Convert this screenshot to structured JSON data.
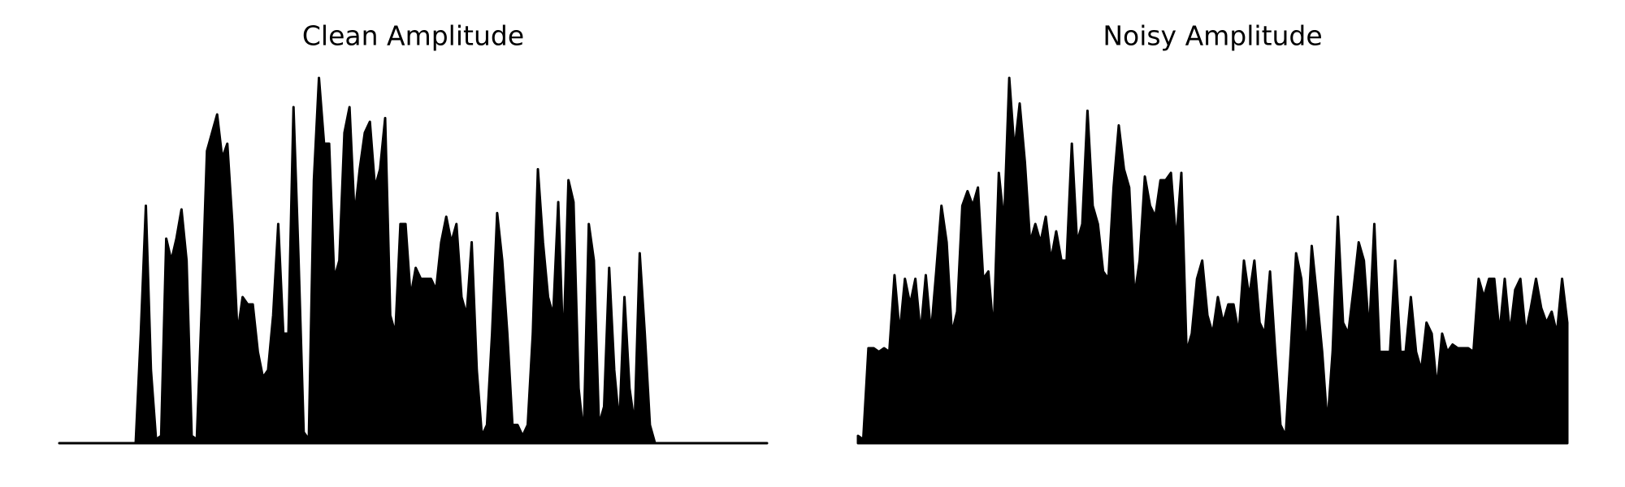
{
  "chart_data": [
    {
      "type": "area",
      "title": "Clean Amplitude",
      "color": "#000000",
      "ylim": [
        0,
        1
      ],
      "values": [
        0,
        0,
        0,
        0,
        0,
        0,
        0,
        0,
        0,
        0,
        0,
        0,
        0,
        0,
        0,
        0,
        0.3,
        0.65,
        0.2,
        0.01,
        0.02,
        0.56,
        0.5,
        0.56,
        0.64,
        0.5,
        0.02,
        0.01,
        0.38,
        0.8,
        0.85,
        0.9,
        0.78,
        0.82,
        0.6,
        0.3,
        0.4,
        0.38,
        0.38,
        0.25,
        0.18,
        0.2,
        0.35,
        0.6,
        0.3,
        0.3,
        0.92,
        0.5,
        0.03,
        0.01,
        0.72,
        1.0,
        0.82,
        0.82,
        0.45,
        0.5,
        0.85,
        0.92,
        0.62,
        0.75,
        0.85,
        0.88,
        0.7,
        0.75,
        0.89,
        0.35,
        0.3,
        0.6,
        0.6,
        0.4,
        0.48,
        0.45,
        0.45,
        0.45,
        0.42,
        0.55,
        0.62,
        0.55,
        0.6,
        0.4,
        0.35,
        0.55,
        0.2,
        0.02,
        0.05,
        0.3,
        0.63,
        0.5,
        0.3,
        0.05,
        0.05,
        0.02,
        0.05,
        0.3,
        0.75,
        0.55,
        0.4,
        0.35,
        0.66,
        0.25,
        0.72,
        0.66,
        0.15,
        0.02,
        0.6,
        0.5,
        0.05,
        0.1,
        0.48,
        0.2,
        0.05,
        0.4,
        0.15,
        0.05,
        0.52,
        0.3,
        0.05,
        0,
        0,
        0,
        0,
        0,
        0,
        0,
        0,
        0,
        0,
        0,
        0,
        0,
        0,
        0,
        0,
        0,
        0,
        0,
        0,
        0,
        0,
        0
      ]
    },
    {
      "type": "area",
      "title": "Noisy Amplitude",
      "color": "#000000",
      "ylim": [
        0,
        1
      ],
      "values": [
        0.02,
        0.01,
        0.26,
        0.26,
        0.25,
        0.26,
        0.25,
        0.46,
        0.3,
        0.45,
        0.38,
        0.45,
        0.3,
        0.46,
        0.3,
        0.47,
        0.65,
        0.55,
        0.3,
        0.36,
        0.65,
        0.69,
        0.65,
        0.7,
        0.45,
        0.47,
        0.3,
        0.74,
        0.6,
        1.0,
        0.8,
        0.93,
        0.77,
        0.55,
        0.6,
        0.55,
        0.62,
        0.5,
        0.58,
        0.5,
        0.5,
        0.82,
        0.55,
        0.6,
        0.91,
        0.65,
        0.6,
        0.47,
        0.45,
        0.7,
        0.87,
        0.75,
        0.7,
        0.4,
        0.5,
        0.73,
        0.65,
        0.62,
        0.72,
        0.72,
        0.74,
        0.55,
        0.74,
        0.25,
        0.3,
        0.45,
        0.5,
        0.35,
        0.3,
        0.4,
        0.33,
        0.38,
        0.38,
        0.3,
        0.5,
        0.4,
        0.5,
        0.33,
        0.3,
        0.47,
        0.25,
        0.05,
        0.02,
        0.26,
        0.52,
        0.45,
        0.25,
        0.54,
        0.4,
        0.25,
        0.05,
        0.25,
        0.62,
        0.33,
        0.3,
        0.42,
        0.55,
        0.5,
        0.3,
        0.6,
        0.25,
        0.25,
        0.25,
        0.5,
        0.25,
        0.25,
        0.4,
        0.25,
        0.2,
        0.33,
        0.3,
        0.15,
        0.3,
        0.25,
        0.27,
        0.26,
        0.26,
        0.26,
        0.25,
        0.45,
        0.4,
        0.45,
        0.45,
        0.3,
        0.45,
        0.3,
        0.42,
        0.45,
        0.3,
        0.37,
        0.45,
        0.37,
        0.33,
        0.36,
        0.3,
        0.45,
        0.33
      ]
    }
  ]
}
